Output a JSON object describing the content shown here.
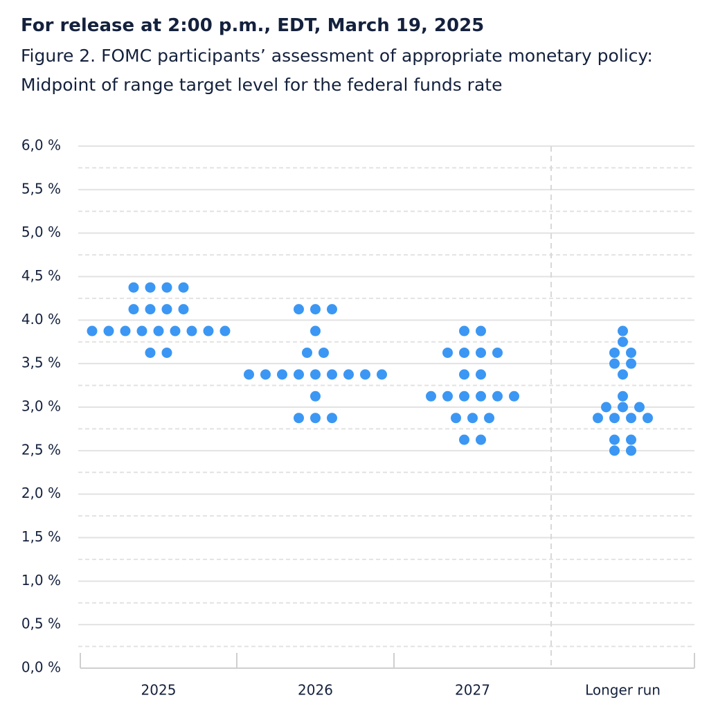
{
  "chart_data": {
    "type": "dot",
    "title": "For release at 2:00 p.m., EDT, March 19, 2025",
    "subtitle": "Figure 2. FOMC participants’ assessment of appropriate monetary policy: Midpoint of range target level for the federal funds rate",
    "categories": [
      "2025",
      "2026",
      "2027",
      "Longer run"
    ],
    "color": "#3b97f3",
    "values": [
      [
        4.375,
        4.375,
        4.375,
        4.375,
        4.125,
        4.125,
        4.125,
        4.125,
        3.875,
        3.875,
        3.875,
        3.875,
        3.875,
        3.875,
        3.875,
        3.875,
        3.875,
        3.625,
        3.625
      ],
      [
        4.125,
        4.125,
        4.125,
        3.875,
        3.625,
        3.625,
        3.375,
        3.375,
        3.375,
        3.375,
        3.375,
        3.375,
        3.375,
        3.375,
        3.375,
        3.125,
        2.875,
        2.875,
        2.875
      ],
      [
        3.875,
        3.875,
        3.625,
        3.625,
        3.625,
        3.625,
        3.375,
        3.375,
        3.125,
        3.125,
        3.125,
        3.125,
        3.125,
        3.125,
        2.875,
        2.875,
        2.875,
        2.625,
        2.625
      ],
      [
        3.875,
        3.75,
        3.625,
        3.625,
        3.5,
        3.5,
        3.375,
        3.125,
        3.0,
        3.0,
        3.0,
        2.875,
        2.875,
        2.875,
        2.875,
        2.625,
        2.625,
        2.5,
        2.5
      ]
    ],
    "ylim": [
      0,
      6
    ],
    "yticks": [
      {
        "value": 0,
        "label": "0,0 %"
      },
      {
        "value": 0.5,
        "label": "0,5 %"
      },
      {
        "value": 1,
        "label": "1,0 %"
      },
      {
        "value": 1.5,
        "label": "1,5 %"
      },
      {
        "value": 2,
        "label": "2,0 %"
      },
      {
        "value": 2.5,
        "label": "2,5 %"
      },
      {
        "value": 3,
        "label": "3,0 %"
      },
      {
        "value": 3.5,
        "label": "3,5 %"
      },
      {
        "value": 4,
        "label": "4.0 %"
      },
      {
        "value": 4.5,
        "label": "4,5 %"
      },
      {
        "value": 5,
        "label": "5,0 %"
      },
      {
        "value": 5.5,
        "label": "5,5 %"
      },
      {
        "value": 6,
        "label": "6,0 %"
      }
    ],
    "grid": true
  }
}
